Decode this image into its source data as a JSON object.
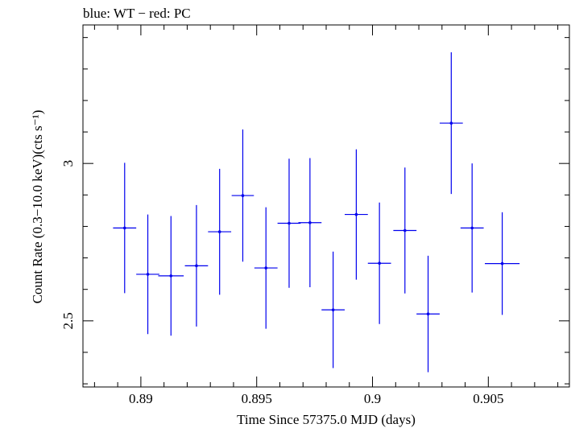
{
  "chart_data": {
    "type": "scatter",
    "title": "blue: WT − red: PC",
    "xlabel": "Time Since 57375.0 MJD (days)",
    "ylabel": "Count Rate (0.3−10.0 keV)(cts s⁻¹)",
    "xlim": [
      0.8875,
      0.9085
    ],
    "ylim": [
      2.29,
      3.44
    ],
    "x_ticks": [
      0.89,
      0.895,
      0.9,
      0.905
    ],
    "x_tick_labels": [
      "0.89",
      "0.895",
      "0.9",
      "0.905"
    ],
    "y_ticks": [
      2.5,
      3.0
    ],
    "y_tick_labels": [
      "2.5",
      "3"
    ],
    "grid": false,
    "series": [
      {
        "color": "#0000ee",
        "points": [
          {
            "x": 0.8893,
            "y": 2.795,
            "xerr": 0.0005,
            "yerr": 0.207
          },
          {
            "x": 0.8903,
            "y": 2.648,
            "xerr": 0.0005,
            "yerr": 0.19
          },
          {
            "x": 0.8913,
            "y": 2.643,
            "xerr": 0.00055,
            "yerr": 0.19
          },
          {
            "x": 0.8924,
            "y": 2.675,
            "xerr": 0.0005,
            "yerr": 0.193
          },
          {
            "x": 0.8934,
            "y": 2.783,
            "xerr": 0.0005,
            "yerr": 0.2
          },
          {
            "x": 0.8944,
            "y": 2.898,
            "xerr": 0.00048,
            "yerr": 0.21
          },
          {
            "x": 0.8954,
            "y": 2.668,
            "xerr": 0.0005,
            "yerr": 0.193
          },
          {
            "x": 0.8964,
            "y": 2.81,
            "xerr": 0.0005,
            "yerr": 0.205
          },
          {
            "x": 0.8973,
            "y": 2.812,
            "xerr": 0.0005,
            "yerr": 0.205
          },
          {
            "x": 0.8983,
            "y": 2.535,
            "xerr": 0.0005,
            "yerr": 0.185
          },
          {
            "x": 0.8993,
            "y": 2.838,
            "xerr": 0.0005,
            "yerr": 0.207
          },
          {
            "x": 0.9003,
            "y": 2.683,
            "xerr": 0.0005,
            "yerr": 0.193
          },
          {
            "x": 0.9014,
            "y": 2.787,
            "xerr": 0.0005,
            "yerr": 0.2
          },
          {
            "x": 0.9024,
            "y": 2.522,
            "xerr": 0.0005,
            "yerr": 0.185
          },
          {
            "x": 0.9034,
            "y": 3.128,
            "xerr": 0.0005,
            "yerr": 0.225
          },
          {
            "x": 0.9043,
            "y": 2.795,
            "xerr": 0.0005,
            "yerr": 0.205
          },
          {
            "x": 0.9056,
            "y": 2.682,
            "xerr": 0.00075,
            "yerr": 0.163
          }
        ]
      }
    ]
  }
}
